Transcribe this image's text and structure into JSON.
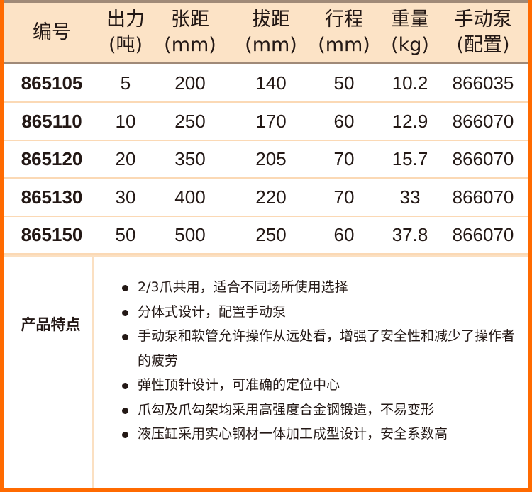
{
  "header": [
    {
      "line1": "编号",
      "line2": ""
    },
    {
      "line1": "出力",
      "line2": "(吨)"
    },
    {
      "line1": "张距",
      "line2": "(mm)"
    },
    {
      "line1": "拔距",
      "line2": "(mm)"
    },
    {
      "line1": "行程",
      "line2": "(mm)"
    },
    {
      "line1": "重量",
      "line2": "(kg)"
    },
    {
      "line1": "手动泵",
      "line2": "(配置)"
    }
  ],
  "rows": [
    [
      "865105",
      "5",
      "200",
      "140",
      "50",
      "10.2",
      "866035"
    ],
    [
      "865110",
      "10",
      "250",
      "170",
      "60",
      "12.9",
      "866070"
    ],
    [
      "865120",
      "20",
      "350",
      "205",
      "70",
      "15.7",
      "866070"
    ],
    [
      "865130",
      "30",
      "400",
      "220",
      "70",
      "33",
      "866070"
    ],
    [
      "865150",
      "50",
      "500",
      "250",
      "60",
      "37.8",
      "866070"
    ]
  ],
  "features": {
    "title": "产品特点",
    "items": [
      "2/3爪共用，适合不同场所使用选择",
      "分体式设计，配置手动泵",
      "手动泵和软管允许操作从远处看，增强了安全性和减少了操作者的疲劳",
      "弹性顶针设计，可准确的定位中心",
      "爪勾及爪勾架均采用高强度合金钢锻造，不易变形",
      "液压缸采用实心钢材一体加工成型设计，安全系数高"
    ]
  },
  "colors": {
    "border": "#ff6a00",
    "header_bg": "#fce3c6"
  }
}
